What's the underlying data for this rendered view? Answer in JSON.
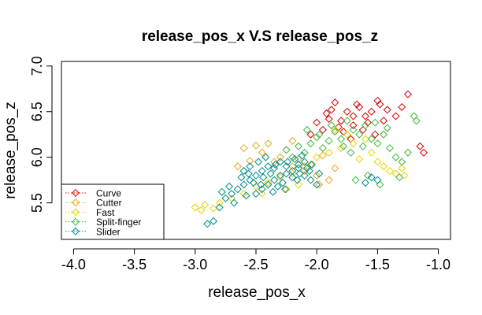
{
  "chart_data": {
    "type": "scatter",
    "title": "release_pos_x V.S release_pos_z",
    "xlabel": "release_pos_x",
    "ylabel": "release_pos_z",
    "xlim": [
      -4.1,
      -0.9
    ],
    "ylim": [
      5.1,
      7.05
    ],
    "xticks": [
      -4.0,
      -3.5,
      -3.0,
      -2.5,
      -2.0,
      -1.5,
      -1.0
    ],
    "xtick_labels": [
      "-4.0",
      "-3.5",
      "-3.0",
      "-2.5",
      "-2.0",
      "-1.5",
      "-1.0"
    ],
    "yticks": [
      5.5,
      6.0,
      6.5,
      7.0
    ],
    "ytick_labels": [
      "5.5",
      "6.0",
      "6.5",
      "7.0"
    ],
    "marker": "open-diamond",
    "grid": false,
    "legend": {
      "position": "bottom-left",
      "entries": [
        "Curve",
        "Cutter",
        "Fast",
        "Split-finger",
        "Slider"
      ]
    },
    "series": [
      {
        "name": "Curve",
        "color": "#d40000",
        "points": [
          [
            -1.25,
            6.69
          ],
          [
            -1.12,
            6.05
          ],
          [
            -1.15,
            6.12
          ],
          [
            -1.3,
            6.55
          ],
          [
            -1.45,
            6.4
          ],
          [
            -1.5,
            6.62
          ],
          [
            -1.55,
            6.5
          ],
          [
            -1.6,
            6.45
          ],
          [
            -1.65,
            6.55
          ],
          [
            -1.7,
            6.35
          ],
          [
            -1.75,
            6.5
          ],
          [
            -1.8,
            6.4
          ],
          [
            -1.85,
            6.6
          ],
          [
            -1.9,
            6.42
          ],
          [
            -1.95,
            6.3
          ],
          [
            -2.0,
            6.38
          ],
          [
            -1.62,
            6.3
          ],
          [
            -1.52,
            6.25
          ],
          [
            -1.42,
            6.52
          ],
          [
            -1.48,
            6.58
          ],
          [
            -1.35,
            6.45
          ],
          [
            -1.78,
            6.28
          ],
          [
            -1.88,
            6.52
          ],
          [
            -2.05,
            6.25
          ],
          [
            -1.7,
            6.45
          ],
          [
            -1.82,
            6.33
          ],
          [
            -1.58,
            6.38
          ],
          [
            -1.92,
            6.48
          ],
          [
            -1.67,
            6.58
          ],
          [
            -1.72,
            6.2
          ]
        ]
      },
      {
        "name": "Cutter",
        "color": "#e6a817",
        "points": [
          [
            -2.5,
            6.13
          ],
          [
            -2.6,
            6.1
          ],
          [
            -2.4,
            6.15
          ],
          [
            -2.3,
            6.0
          ],
          [
            -2.2,
            5.9
          ],
          [
            -2.1,
            5.85
          ],
          [
            -2.0,
            5.8
          ],
          [
            -1.9,
            5.75
          ],
          [
            -2.35,
            5.95
          ],
          [
            -2.45,
            6.05
          ],
          [
            -2.25,
            6.08
          ],
          [
            -2.15,
            5.98
          ],
          [
            -2.05,
            5.92
          ],
          [
            -1.95,
            6.02
          ],
          [
            -1.85,
            5.88
          ],
          [
            -2.55,
            5.96
          ],
          [
            -2.65,
            5.9
          ],
          [
            -2.2,
            6.18
          ],
          [
            -1.98,
            5.7
          ]
        ]
      },
      {
        "name": "Fast",
        "color": "#e8d400",
        "points": [
          [
            -3.0,
            5.45
          ],
          [
            -2.95,
            5.42
          ],
          [
            -2.92,
            5.48
          ],
          [
            -2.85,
            5.44
          ],
          [
            -2.8,
            5.5
          ],
          [
            -2.7,
            5.55
          ],
          [
            -2.6,
            5.6
          ],
          [
            -2.5,
            5.68
          ],
          [
            -2.4,
            5.72
          ],
          [
            -2.3,
            5.78
          ],
          [
            -2.2,
            5.82
          ],
          [
            -2.1,
            5.9
          ],
          [
            -2.0,
            6.0
          ],
          [
            -1.9,
            6.05
          ],
          [
            -1.8,
            6.1
          ],
          [
            -1.7,
            6.15
          ],
          [
            -1.6,
            6.2
          ],
          [
            -1.5,
            5.95
          ],
          [
            -1.45,
            5.9
          ],
          [
            -1.4,
            5.85
          ],
          [
            -1.35,
            5.82
          ],
          [
            -1.3,
            5.88
          ],
          [
            -1.28,
            5.8
          ],
          [
            -1.55,
            6.05
          ],
          [
            -1.65,
            5.98
          ],
          [
            -1.75,
            6.25
          ],
          [
            -1.85,
            6.3
          ],
          [
            -2.25,
            5.65
          ],
          [
            -2.45,
            5.6
          ],
          [
            -2.15,
            5.7
          ]
        ]
      },
      {
        "name": "Split-finger",
        "color": "#3cb83c",
        "points": [
          [
            -1.75,
            6.4
          ],
          [
            -1.7,
            6.3
          ],
          [
            -1.65,
            6.25
          ],
          [
            -1.6,
            6.35
          ],
          [
            -1.55,
            6.2
          ],
          [
            -1.5,
            6.15
          ],
          [
            -1.45,
            6.25
          ],
          [
            -1.4,
            6.1
          ],
          [
            -1.35,
            6.0
          ],
          [
            -1.3,
            5.95
          ],
          [
            -1.25,
            6.05
          ],
          [
            -1.2,
            6.45
          ],
          [
            -1.18,
            6.4
          ],
          [
            -1.85,
            6.28
          ],
          [
            -1.9,
            6.18
          ],
          [
            -1.95,
            6.1
          ],
          [
            -2.0,
            6.22
          ],
          [
            -2.05,
            6.15
          ],
          [
            -2.1,
            6.05
          ],
          [
            -2.15,
            6.12
          ],
          [
            -2.2,
            6.0
          ],
          [
            -1.8,
            6.2
          ],
          [
            -1.62,
            6.12
          ],
          [
            -1.52,
            6.38
          ],
          [
            -1.72,
            6.05
          ],
          [
            -1.42,
            6.32
          ],
          [
            -1.32,
            5.78
          ],
          [
            -1.58,
            5.8
          ],
          [
            -1.68,
            5.75
          ],
          [
            -1.48,
            5.7
          ],
          [
            -2.25,
            6.08
          ],
          [
            -1.88,
            6.35
          ],
          [
            -1.78,
            6.12
          ],
          [
            -2.08,
            6.3
          ],
          [
            -1.98,
            6.25
          ]
        ]
      },
      {
        "name": "Slider",
        "color": "#008b8b",
        "points": [
          [
            -2.9,
            5.27
          ],
          [
            -2.85,
            5.3
          ],
          [
            -2.8,
            5.45
          ],
          [
            -2.75,
            5.55
          ],
          [
            -2.7,
            5.6
          ],
          [
            -2.65,
            5.65
          ],
          [
            -2.6,
            5.7
          ],
          [
            -2.55,
            5.75
          ],
          [
            -2.5,
            5.8
          ],
          [
            -2.45,
            5.85
          ],
          [
            -2.4,
            5.9
          ],
          [
            -2.35,
            5.88
          ],
          [
            -2.3,
            5.95
          ],
          [
            -2.25,
            5.9
          ],
          [
            -2.2,
            5.85
          ],
          [
            -2.15,
            5.92
          ],
          [
            -2.1,
            5.8
          ],
          [
            -2.05,
            5.75
          ],
          [
            -2.0,
            5.7
          ],
          [
            -2.5,
            5.6
          ],
          [
            -2.45,
            5.65
          ],
          [
            -2.4,
            5.7
          ],
          [
            -2.35,
            5.75
          ],
          [
            -2.3,
            5.8
          ],
          [
            -2.25,
            5.82
          ],
          [
            -2.2,
            5.78
          ],
          [
            -2.15,
            5.88
          ],
          [
            -2.1,
            5.95
          ],
          [
            -2.6,
            5.85
          ],
          [
            -2.55,
            5.9
          ],
          [
            -2.48,
            5.95
          ],
          [
            -2.42,
            6.0
          ],
          [
            -2.38,
            5.82
          ],
          [
            -2.32,
            5.68
          ],
          [
            -2.28,
            5.72
          ],
          [
            -2.18,
            5.98
          ],
          [
            -2.12,
            6.02
          ],
          [
            -2.08,
            5.88
          ],
          [
            -1.98,
            5.82
          ],
          [
            -2.62,
            5.78
          ],
          [
            -2.58,
            5.58
          ],
          [
            -2.52,
            5.72
          ],
          [
            -2.44,
            5.78
          ],
          [
            -2.36,
            5.62
          ],
          [
            -2.26,
            5.65
          ],
          [
            -2.16,
            5.75
          ],
          [
            -2.06,
            5.85
          ],
          [
            -2.72,
            5.68
          ],
          [
            -2.68,
            5.5
          ],
          [
            -2.78,
            5.62
          ],
          [
            -1.55,
            5.78
          ],
          [
            -1.6,
            5.72
          ],
          [
            -1.5,
            5.75
          ],
          [
            -2.34,
            5.92
          ],
          [
            -2.24,
            5.95
          ],
          [
            -2.14,
            5.82
          ],
          [
            -2.46,
            5.7
          ],
          [
            -2.56,
            5.82
          ],
          [
            -2.04,
            5.92
          ]
        ]
      }
    ]
  }
}
